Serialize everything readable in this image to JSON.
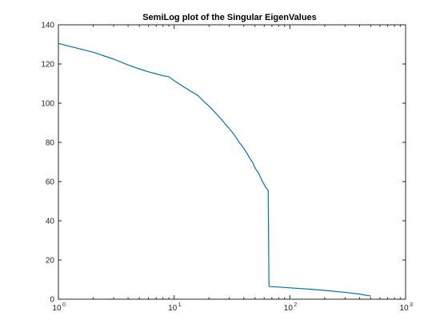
{
  "chart_data": {
    "type": "line",
    "title": "SemiLog plot of the Singular EigenValues",
    "xlabel": "",
    "ylabel": "",
    "xscale": "log",
    "xlim": [
      1,
      1000
    ],
    "ylim": [
      0,
      140
    ],
    "grid": false,
    "x_ticks": [
      {
        "value": 1,
        "base": "10",
        "exp": "0"
      },
      {
        "value": 10,
        "base": "10",
        "exp": "1"
      },
      {
        "value": 100,
        "base": "10",
        "exp": "2"
      },
      {
        "value": 1000,
        "base": "10",
        "exp": "3"
      }
    ],
    "y_ticks": [
      0,
      20,
      40,
      60,
      80,
      100,
      120,
      140
    ],
    "series": [
      {
        "color": "#0072bd",
        "x": [
          1,
          2,
          3,
          4,
          5,
          6,
          7,
          8,
          9,
          10,
          12,
          14,
          15,
          16,
          18,
          20,
          22,
          25,
          28,
          30,
          33,
          36,
          40,
          43,
          45,
          48,
          50,
          52,
          54,
          56,
          58,
          60,
          62,
          64,
          65,
          66,
          80,
          100,
          150,
          200,
          300,
          400,
          500
        ],
        "y": [
          130.5,
          126,
          122.5,
          119.5,
          117.5,
          116,
          115,
          114,
          113.5,
          111.5,
          108.5,
          106,
          105,
          104,
          101,
          98.5,
          96,
          92.5,
          89,
          87,
          84,
          80.5,
          77,
          74,
          72,
          69.5,
          67,
          65.5,
          64,
          62,
          60,
          58.5,
          57,
          56,
          55.5,
          6.5,
          6.2,
          5.8,
          5.1,
          4.5,
          3.5,
          2.6,
          1.6
        ]
      }
    ]
  }
}
